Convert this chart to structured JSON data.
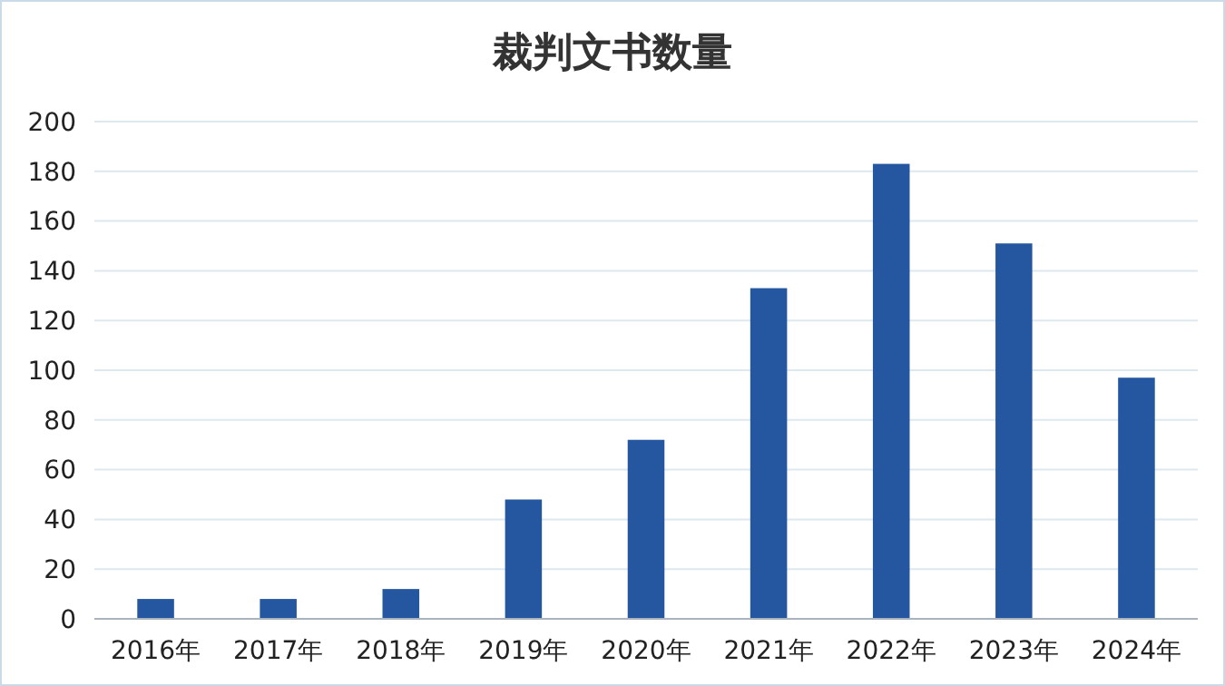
{
  "chart_data": {
    "type": "bar",
    "title": "裁判文书数量",
    "categories": [
      "2016年",
      "2017年",
      "2018年",
      "2019年",
      "2020年",
      "2021年",
      "2022年",
      "2023年",
      "2024年"
    ],
    "values": [
      8,
      8,
      12,
      48,
      72,
      133,
      183,
      151,
      97
    ],
    "color": "#2457a0",
    "ylim": [
      0,
      200
    ],
    "yticks": [
      0,
      20,
      40,
      60,
      80,
      100,
      120,
      140,
      160,
      180,
      200
    ],
    "grid": "y"
  }
}
